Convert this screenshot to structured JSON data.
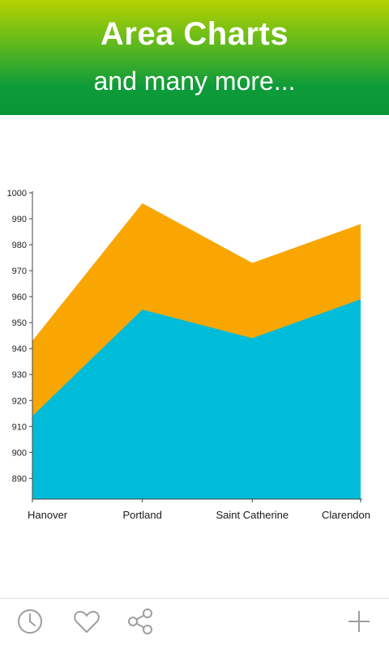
{
  "header": {
    "title": "Area Charts",
    "subtitle": "and many more..."
  },
  "chart_data": {
    "type": "area",
    "stacked": false,
    "categories": [
      "Hanover",
      "Portland",
      "Saint Catherine",
      "Clarendon"
    ],
    "series": [
      {
        "color": "#f9a602",
        "values": [
          943,
          996,
          973,
          988
        ]
      },
      {
        "color": "#00bcd8",
        "values": [
          914,
          955,
          944,
          959
        ]
      }
    ],
    "y_ticks": [
      "1000",
      "990",
      "980",
      "970",
      "960",
      "950",
      "940",
      "930",
      "920",
      "910",
      "900",
      "890"
    ],
    "ylim": [
      882,
      1000
    ],
    "grid": false,
    "legend": "none"
  },
  "bottom_bar": {
    "icons": [
      "history-icon",
      "favorite-icon",
      "share-icon",
      "add-icon"
    ]
  }
}
